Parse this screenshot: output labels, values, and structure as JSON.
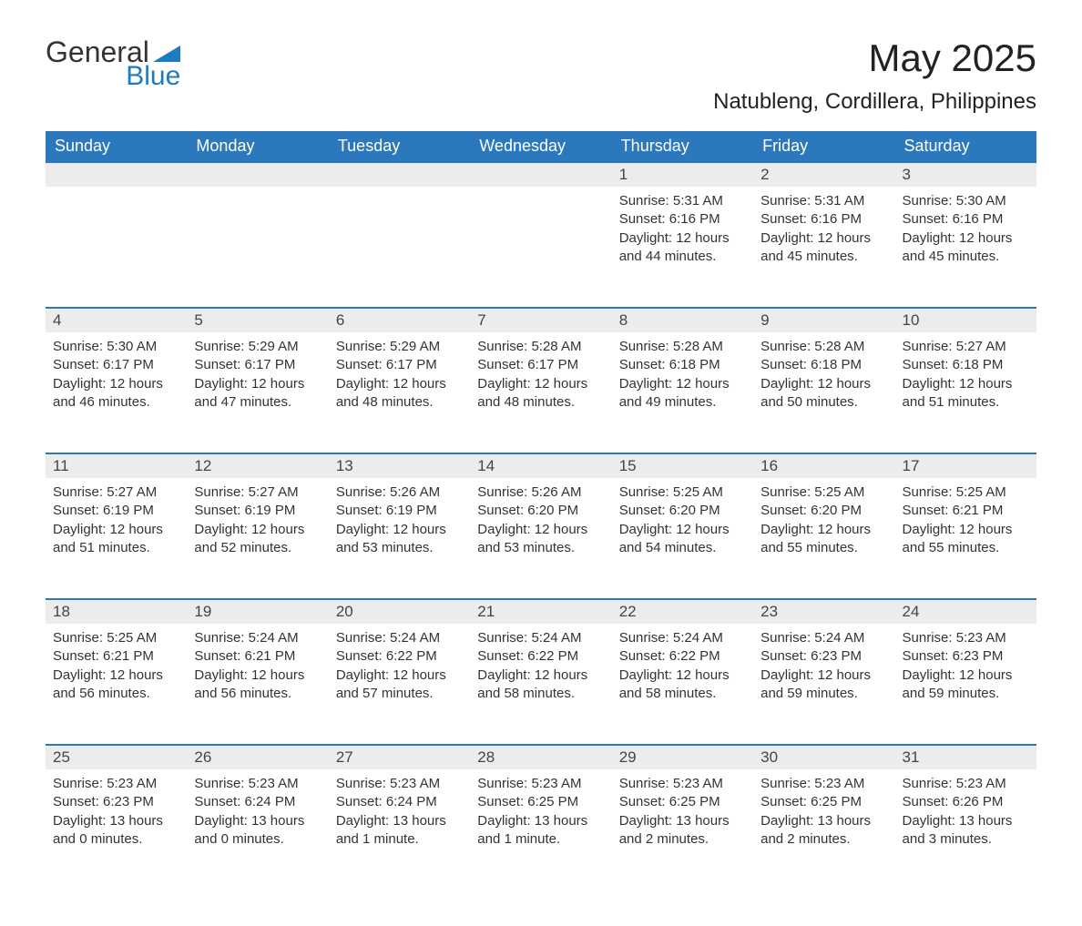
{
  "logo": {
    "general": "General",
    "blue": "Blue",
    "accent_color": "#1f7bbf"
  },
  "title": "May 2025",
  "location": "Natubleng, Cordillera, Philippines",
  "colors": {
    "header_bg": "#2b78bd",
    "header_text": "#ffffff",
    "daynum_bg": "#ececec",
    "daynum_border": "#2b78bd",
    "body_text": "#333333",
    "page_bg": "#ffffff"
  },
  "weekdays": [
    "Sunday",
    "Monday",
    "Tuesday",
    "Wednesday",
    "Thursday",
    "Friday",
    "Saturday"
  ],
  "weeks": [
    [
      null,
      null,
      null,
      null,
      {
        "day": "1",
        "sunrise": "Sunrise: 5:31 AM",
        "sunset": "Sunset: 6:16 PM",
        "daylight": "Daylight: 12 hours and 44 minutes."
      },
      {
        "day": "2",
        "sunrise": "Sunrise: 5:31 AM",
        "sunset": "Sunset: 6:16 PM",
        "daylight": "Daylight: 12 hours and 45 minutes."
      },
      {
        "day": "3",
        "sunrise": "Sunrise: 5:30 AM",
        "sunset": "Sunset: 6:16 PM",
        "daylight": "Daylight: 12 hours and 45 minutes."
      }
    ],
    [
      {
        "day": "4",
        "sunrise": "Sunrise: 5:30 AM",
        "sunset": "Sunset: 6:17 PM",
        "daylight": "Daylight: 12 hours and 46 minutes."
      },
      {
        "day": "5",
        "sunrise": "Sunrise: 5:29 AM",
        "sunset": "Sunset: 6:17 PM",
        "daylight": "Daylight: 12 hours and 47 minutes."
      },
      {
        "day": "6",
        "sunrise": "Sunrise: 5:29 AM",
        "sunset": "Sunset: 6:17 PM",
        "daylight": "Daylight: 12 hours and 48 minutes."
      },
      {
        "day": "7",
        "sunrise": "Sunrise: 5:28 AM",
        "sunset": "Sunset: 6:17 PM",
        "daylight": "Daylight: 12 hours and 48 minutes."
      },
      {
        "day": "8",
        "sunrise": "Sunrise: 5:28 AM",
        "sunset": "Sunset: 6:18 PM",
        "daylight": "Daylight: 12 hours and 49 minutes."
      },
      {
        "day": "9",
        "sunrise": "Sunrise: 5:28 AM",
        "sunset": "Sunset: 6:18 PM",
        "daylight": "Daylight: 12 hours and 50 minutes."
      },
      {
        "day": "10",
        "sunrise": "Sunrise: 5:27 AM",
        "sunset": "Sunset: 6:18 PM",
        "daylight": "Daylight: 12 hours and 51 minutes."
      }
    ],
    [
      {
        "day": "11",
        "sunrise": "Sunrise: 5:27 AM",
        "sunset": "Sunset: 6:19 PM",
        "daylight": "Daylight: 12 hours and 51 minutes."
      },
      {
        "day": "12",
        "sunrise": "Sunrise: 5:27 AM",
        "sunset": "Sunset: 6:19 PM",
        "daylight": "Daylight: 12 hours and 52 minutes."
      },
      {
        "day": "13",
        "sunrise": "Sunrise: 5:26 AM",
        "sunset": "Sunset: 6:19 PM",
        "daylight": "Daylight: 12 hours and 53 minutes."
      },
      {
        "day": "14",
        "sunrise": "Sunrise: 5:26 AM",
        "sunset": "Sunset: 6:20 PM",
        "daylight": "Daylight: 12 hours and 53 minutes."
      },
      {
        "day": "15",
        "sunrise": "Sunrise: 5:25 AM",
        "sunset": "Sunset: 6:20 PM",
        "daylight": "Daylight: 12 hours and 54 minutes."
      },
      {
        "day": "16",
        "sunrise": "Sunrise: 5:25 AM",
        "sunset": "Sunset: 6:20 PM",
        "daylight": "Daylight: 12 hours and 55 minutes."
      },
      {
        "day": "17",
        "sunrise": "Sunrise: 5:25 AM",
        "sunset": "Sunset: 6:21 PM",
        "daylight": "Daylight: 12 hours and 55 minutes."
      }
    ],
    [
      {
        "day": "18",
        "sunrise": "Sunrise: 5:25 AM",
        "sunset": "Sunset: 6:21 PM",
        "daylight": "Daylight: 12 hours and 56 minutes."
      },
      {
        "day": "19",
        "sunrise": "Sunrise: 5:24 AM",
        "sunset": "Sunset: 6:21 PM",
        "daylight": "Daylight: 12 hours and 56 minutes."
      },
      {
        "day": "20",
        "sunrise": "Sunrise: 5:24 AM",
        "sunset": "Sunset: 6:22 PM",
        "daylight": "Daylight: 12 hours and 57 minutes."
      },
      {
        "day": "21",
        "sunrise": "Sunrise: 5:24 AM",
        "sunset": "Sunset: 6:22 PM",
        "daylight": "Daylight: 12 hours and 58 minutes."
      },
      {
        "day": "22",
        "sunrise": "Sunrise: 5:24 AM",
        "sunset": "Sunset: 6:22 PM",
        "daylight": "Daylight: 12 hours and 58 minutes."
      },
      {
        "day": "23",
        "sunrise": "Sunrise: 5:24 AM",
        "sunset": "Sunset: 6:23 PM",
        "daylight": "Daylight: 12 hours and 59 minutes."
      },
      {
        "day": "24",
        "sunrise": "Sunrise: 5:23 AM",
        "sunset": "Sunset: 6:23 PM",
        "daylight": "Daylight: 12 hours and 59 minutes."
      }
    ],
    [
      {
        "day": "25",
        "sunrise": "Sunrise: 5:23 AM",
        "sunset": "Sunset: 6:23 PM",
        "daylight": "Daylight: 13 hours and 0 minutes."
      },
      {
        "day": "26",
        "sunrise": "Sunrise: 5:23 AM",
        "sunset": "Sunset: 6:24 PM",
        "daylight": "Daylight: 13 hours and 0 minutes."
      },
      {
        "day": "27",
        "sunrise": "Sunrise: 5:23 AM",
        "sunset": "Sunset: 6:24 PM",
        "daylight": "Daylight: 13 hours and 1 minute."
      },
      {
        "day": "28",
        "sunrise": "Sunrise: 5:23 AM",
        "sunset": "Sunset: 6:25 PM",
        "daylight": "Daylight: 13 hours and 1 minute."
      },
      {
        "day": "29",
        "sunrise": "Sunrise: 5:23 AM",
        "sunset": "Sunset: 6:25 PM",
        "daylight": "Daylight: 13 hours and 2 minutes."
      },
      {
        "day": "30",
        "sunrise": "Sunrise: 5:23 AM",
        "sunset": "Sunset: 6:25 PM",
        "daylight": "Daylight: 13 hours and 2 minutes."
      },
      {
        "day": "31",
        "sunrise": "Sunrise: 5:23 AM",
        "sunset": "Sunset: 6:26 PM",
        "daylight": "Daylight: 13 hours and 3 minutes."
      }
    ]
  ]
}
